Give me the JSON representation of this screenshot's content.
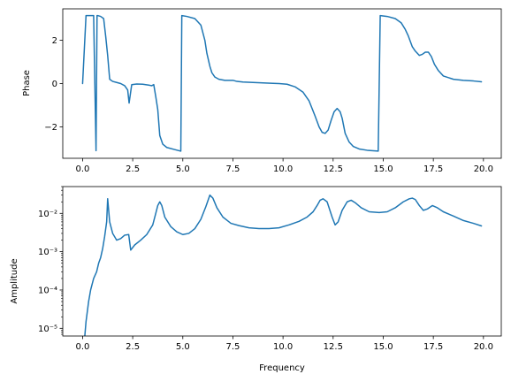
{
  "chart_data": [
    {
      "type": "line",
      "title": "",
      "xlabel": "",
      "ylabel": "Phase",
      "xlim": [
        -0.99,
        20.89
      ],
      "ylim": [
        -3.45,
        3.45
      ],
      "yscale": "linear",
      "xticks": [
        0.0,
        2.5,
        5.0,
        7.5,
        10.0,
        12.5,
        15.0,
        17.5,
        20.0
      ],
      "xtick_labels": [
        "0.0",
        "2.5",
        "5.0",
        "7.5",
        "10.0",
        "12.5",
        "15.0",
        "17.5",
        "20.0"
      ],
      "yticks": [
        -2,
        0,
        2
      ],
      "ytick_labels": [
        "−2",
        "0",
        "2"
      ],
      "grid": false,
      "color": "#1f77b4",
      "x": [
        0.0,
        0.17,
        0.5,
        0.55,
        0.67,
        0.72,
        0.75,
        0.9,
        1.05,
        1.15,
        1.25,
        1.35,
        1.5,
        1.7,
        1.9,
        2.1,
        2.25,
        2.32,
        2.45,
        2.7,
        3.0,
        3.3,
        3.45,
        3.55,
        3.65,
        3.75,
        3.85,
        4.0,
        4.2,
        4.6,
        4.9,
        4.95,
        5.2,
        5.6,
        5.9,
        6.1,
        6.2,
        6.35,
        6.45,
        6.6,
        6.8,
        7.1,
        7.5,
        7.7,
        8.0,
        8.5,
        9.0,
        9.5,
        9.8,
        10.2,
        10.6,
        11.0,
        11.3,
        11.6,
        11.8,
        11.95,
        12.1,
        12.25,
        12.4,
        12.55,
        12.7,
        12.85,
        12.95,
        13.1,
        13.3,
        13.5,
        13.8,
        14.2,
        14.75,
        14.85,
        15.2,
        15.6,
        15.9,
        16.1,
        16.25,
        16.45,
        16.6,
        16.8,
        16.95,
        17.1,
        17.25,
        17.4,
        17.55,
        17.75,
        18.0,
        18.5,
        19.0,
        19.5,
        19.9
      ],
      "y": [
        0.0,
        3.14,
        3.14,
        3.14,
        -3.1,
        3.14,
        3.14,
        3.1,
        3.0,
        2.2,
        1.3,
        0.2,
        0.1,
        0.05,
        0.0,
        -0.1,
        -0.3,
        -0.9,
        -0.05,
        -0.02,
        -0.03,
        -0.07,
        -0.1,
        -0.05,
        -0.6,
        -1.2,
        -2.4,
        -2.8,
        -2.95,
        -3.05,
        -3.12,
        3.14,
        3.1,
        3.0,
        2.7,
        2.0,
        1.4,
        0.8,
        0.5,
        0.3,
        0.2,
        0.15,
        0.15,
        0.1,
        0.07,
        0.05,
        0.03,
        0.01,
        0.0,
        -0.03,
        -0.15,
        -0.4,
        -0.8,
        -1.5,
        -2.0,
        -2.25,
        -2.3,
        -2.15,
        -1.7,
        -1.3,
        -1.15,
        -1.3,
        -1.6,
        -2.3,
        -2.7,
        -2.9,
        -3.02,
        -3.08,
        -3.12,
        3.14,
        3.1,
        3.0,
        2.8,
        2.5,
        2.2,
        1.7,
        1.5,
        1.3,
        1.35,
        1.45,
        1.45,
        1.25,
        0.9,
        0.6,
        0.35,
        0.2,
        0.15,
        0.12,
        0.08
      ]
    },
    {
      "type": "line",
      "title": "",
      "xlabel": "Frequency",
      "ylabel": "Amplitude",
      "xlim": [
        -0.99,
        20.89
      ],
      "ylim": [
        6.3e-06,
        0.05
      ],
      "yscale": "log",
      "xticks": [
        0.0,
        2.5,
        5.0,
        7.5,
        10.0,
        12.5,
        15.0,
        17.5,
        20.0
      ],
      "xtick_labels": [
        "0.0",
        "2.5",
        "5.0",
        "7.5",
        "10.0",
        "12.5",
        "15.0",
        "17.5",
        "20.0"
      ],
      "yticks": [
        1e-05,
        0.0001,
        0.001,
        0.01
      ],
      "ytick_labels": [
        "10⁻⁵",
        "10⁻⁴",
        "10⁻³",
        "10⁻²"
      ],
      "grid": false,
      "color": "#1f77b4",
      "x": [
        0.1,
        0.17,
        0.3,
        0.4,
        0.55,
        0.7,
        0.8,
        0.9,
        1.0,
        1.1,
        1.2,
        1.25,
        1.35,
        1.5,
        1.7,
        1.9,
        2.1,
        2.3,
        2.4,
        2.6,
        2.9,
        3.2,
        3.5,
        3.65,
        3.75,
        3.85,
        3.95,
        4.1,
        4.4,
        4.7,
        5.0,
        5.3,
        5.6,
        5.9,
        6.15,
        6.35,
        6.5,
        6.7,
        7.0,
        7.4,
        7.8,
        8.3,
        8.8,
        9.3,
        9.8,
        10.3,
        10.8,
        11.2,
        11.5,
        11.7,
        11.85,
        12.0,
        12.2,
        12.45,
        12.6,
        12.75,
        12.95,
        13.2,
        13.4,
        13.6,
        13.9,
        14.3,
        14.8,
        15.2,
        15.6,
        16.0,
        16.3,
        16.45,
        16.6,
        16.8,
        17.0,
        17.2,
        17.45,
        17.7,
        18.0,
        18.5,
        19.0,
        19.5,
        19.9
      ],
      "y": [
        5.5e-06,
        1.5e-05,
        5e-05,
        0.0001,
        0.0002,
        0.0003,
        0.0005,
        0.0007,
        0.0012,
        0.0025,
        0.006,
        0.024,
        0.006,
        0.003,
        0.002,
        0.0022,
        0.0027,
        0.0028,
        0.0011,
        0.0015,
        0.002,
        0.0028,
        0.005,
        0.01,
        0.016,
        0.02,
        0.016,
        0.008,
        0.0045,
        0.0033,
        0.0028,
        0.003,
        0.004,
        0.007,
        0.015,
        0.03,
        0.025,
        0.014,
        0.008,
        0.0055,
        0.0048,
        0.0042,
        0.004,
        0.004,
        0.0042,
        0.005,
        0.0062,
        0.008,
        0.011,
        0.016,
        0.022,
        0.024,
        0.02,
        0.008,
        0.005,
        0.006,
        0.012,
        0.02,
        0.022,
        0.019,
        0.014,
        0.011,
        0.0105,
        0.011,
        0.014,
        0.02,
        0.024,
        0.025,
        0.023,
        0.016,
        0.012,
        0.013,
        0.016,
        0.014,
        0.011,
        0.0085,
        0.0065,
        0.0055,
        0.0047
      ]
    }
  ]
}
